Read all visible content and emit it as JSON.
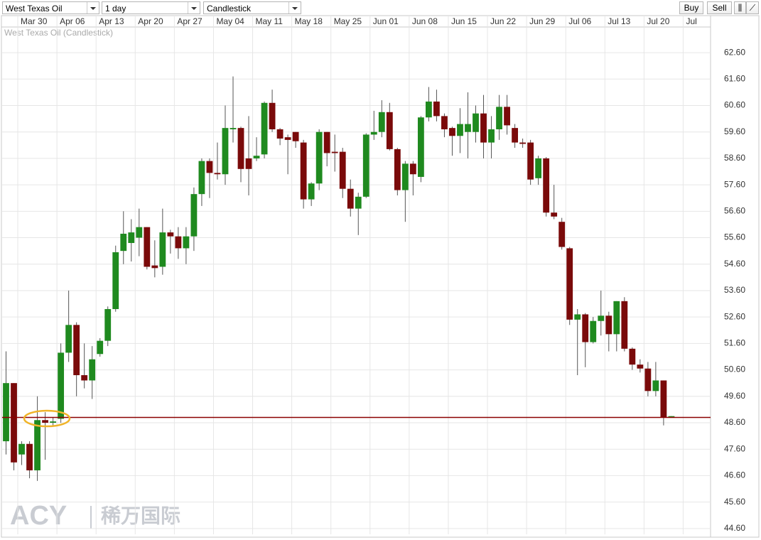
{
  "toolbar": {
    "instrument": "West Texas Oil",
    "interval": "1 day",
    "chart_style": "Candlestick",
    "buy": "Buy",
    "sell": "Sell"
  },
  "watermark": {
    "brand": "ACY",
    "name": "稀万国际"
  },
  "chart_data": {
    "type": "candlestick",
    "subtitle": "West Texas Oil (Candlestick)",
    "up_color": "#1f8a1f",
    "down_color": "#7a0a0a",
    "grid": true,
    "open": [
      47.9,
      50.1,
      47.4,
      47.8,
      46.8,
      48.7,
      48.6,
      48.75,
      51.25,
      52.3,
      50.4,
      50.2,
      51.2,
      51.7,
      52.9,
      55.1,
      55.4,
      55.6,
      56.0,
      54.55,
      54.5,
      55.8,
      55.65,
      55.2,
      55.65,
      57.25,
      58.5,
      58.05,
      58.0,
      59.7,
      59.75,
      58.6,
      58.6,
      58.75,
      60.7,
      59.7,
      59.4,
      59.6,
      59.2,
      57.05,
      57.65,
      59.6,
      58.85,
      58.85,
      57.45,
      56.7,
      57.15,
      59.5,
      59.6,
      60.35,
      58.95,
      57.4,
      58.4,
      57.9,
      60.15,
      60.75,
      60.2,
      59.75,
      59.45,
      59.6,
      59.6,
      60.3,
      59.2,
      59.7,
      60.55,
      59.75,
      59.2,
      59.2,
      57.85,
      58.6,
      56.55,
      56.2,
      55.2,
      52.5,
      52.7,
      51.65,
      52.45,
      52.65,
      51.95,
      53.2,
      51.4,
      50.8,
      50.65,
      49.8,
      50.2,
      48.8
    ],
    "high": [
      51.3,
      50.1,
      47.9,
      47.9,
      49.6,
      49.0,
      48.8,
      51.6,
      53.6,
      52.4,
      51.6,
      51.5,
      51.8,
      53.0,
      55.3,
      56.6,
      56.3,
      56.7,
      56.0,
      55.5,
      56.7,
      55.9,
      56.0,
      56.0,
      57.5,
      58.6,
      58.6,
      59.2,
      60.6,
      61.7,
      59.8,
      60.2,
      59.4,
      60.75,
      61.2,
      59.75,
      59.5,
      59.6,
      59.3,
      57.7,
      59.7,
      59.6,
      59.5,
      59.0,
      57.8,
      57.3,
      59.55,
      60.4,
      60.8,
      60.7,
      59.0,
      58.5,
      58.5,
      60.2,
      61.3,
      61.2,
      60.3,
      59.8,
      60.5,
      61.1,
      60.6,
      61.0,
      60.2,
      61.0,
      61.0,
      59.9,
      59.35,
      59.3,
      58.7,
      58.65,
      57.6,
      56.35,
      55.25,
      52.9,
      52.75,
      52.6,
      53.6,
      52.8,
      53.2,
      53.35,
      51.45,
      51.0,
      50.9,
      50.9,
      50.2,
      48.85
    ],
    "low": [
      47.4,
      46.8,
      47.0,
      46.5,
      46.4,
      47.2,
      48.5,
      48.6,
      50.9,
      49.6,
      49.9,
      49.5,
      51.1,
      51.5,
      52.8,
      54.6,
      54.7,
      54.9,
      54.4,
      54.1,
      54.2,
      55.0,
      54.8,
      54.6,
      55.1,
      56.8,
      57.1,
      57.8,
      57.6,
      59.2,
      57.7,
      57.2,
      58.5,
      58.6,
      59.6,
      59.1,
      58.0,
      59.0,
      56.7,
      56.8,
      57.4,
      58.3,
      58.1,
      57.1,
      56.4,
      55.7,
      57.1,
      59.3,
      59.4,
      58.9,
      57.2,
      56.2,
      57.2,
      57.7,
      60.0,
      60.0,
      59.4,
      58.7,
      58.8,
      58.6,
      59.2,
      58.6,
      58.6,
      59.3,
      59.5,
      59.0,
      59.0,
      57.6,
      57.6,
      56.4,
      56.3,
      55.15,
      52.3,
      50.4,
      50.7,
      51.6,
      51.9,
      51.3,
      51.3,
      51.3,
      50.6,
      50.5,
      49.6,
      49.6,
      48.5,
      48.8
    ],
    "close": [
      50.1,
      47.1,
      47.8,
      46.8,
      48.7,
      48.6,
      48.65,
      51.25,
      52.3,
      50.4,
      50.2,
      51.0,
      51.7,
      52.9,
      55.05,
      55.75,
      55.8,
      56.0,
      54.5,
      54.45,
      55.8,
      55.65,
      55.2,
      55.65,
      57.25,
      58.5,
      58.05,
      58.0,
      59.75,
      59.75,
      58.2,
      58.2,
      58.7,
      60.7,
      59.7,
      59.35,
      59.3,
      59.25,
      57.05,
      57.65,
      59.6,
      58.8,
      58.8,
      57.45,
      56.7,
      57.15,
      59.5,
      59.6,
      60.35,
      58.95,
      57.4,
      58.4,
      58.0,
      60.15,
      60.75,
      60.2,
      59.7,
      59.45,
      59.9,
      59.9,
      60.3,
      59.2,
      59.7,
      60.55,
      59.85,
      59.2,
      59.15,
      57.8,
      58.6,
      56.55,
      56.4,
      55.25,
      52.5,
      52.7,
      51.65,
      52.45,
      52.65,
      51.95,
      53.2,
      51.4,
      50.8,
      50.65,
      49.8,
      50.2,
      48.8,
      48.85
    ],
    "hline": {
      "value": 48.8,
      "color": "#8b0000"
    },
    "xlim": [
      -0.5,
      90
    ],
    "xticks": [
      {
        "value": 1.5,
        "label": "Mar 30"
      },
      {
        "value": 6.5,
        "label": "Apr 06"
      },
      {
        "value": 11.5,
        "label": "Apr 13"
      },
      {
        "value": 16.5,
        "label": "Apr 20"
      },
      {
        "value": 21.5,
        "label": "Apr 27"
      },
      {
        "value": 26.5,
        "label": "May 04"
      },
      {
        "value": 31.5,
        "label": "May 11"
      },
      {
        "value": 36.5,
        "label": "May 18"
      },
      {
        "value": 41.5,
        "label": "May 25"
      },
      {
        "value": 46.5,
        "label": "Jun 01"
      },
      {
        "value": 51.5,
        "label": "Jun 08"
      },
      {
        "value": 56.5,
        "label": "Jun 15"
      },
      {
        "value": 61.5,
        "label": "Jun 22"
      },
      {
        "value": 66.5,
        "label": "Jun 29"
      },
      {
        "value": 71.5,
        "label": "Jul 06"
      },
      {
        "value": 76.5,
        "label": "Jul 13"
      },
      {
        "value": 81.5,
        "label": "Jul 20"
      },
      {
        "value": 86.5,
        "label": "Jul"
      }
    ],
    "ylim": [
      44.38,
      63.57
    ],
    "yticks": [
      {
        "value": 44.6,
        "label": "44.60"
      },
      {
        "value": 45.6,
        "label": "45.60"
      },
      {
        "value": 46.6,
        "label": "46.60"
      },
      {
        "value": 47.6,
        "label": "47.60"
      },
      {
        "value": 48.6,
        "label": "48.60"
      },
      {
        "value": 49.6,
        "label": "49.60"
      },
      {
        "value": 50.6,
        "label": "50.60"
      },
      {
        "value": 51.6,
        "label": "51.60"
      },
      {
        "value": 52.6,
        "label": "52.60"
      },
      {
        "value": 53.6,
        "label": "53.60"
      },
      {
        "value": 54.6,
        "label": "54.60"
      },
      {
        "value": 55.6,
        "label": "55.60"
      },
      {
        "value": 56.6,
        "label": "56.60"
      },
      {
        "value": 57.6,
        "label": "57.60"
      },
      {
        "value": 58.6,
        "label": "58.60"
      },
      {
        "value": 59.6,
        "label": "59.60"
      },
      {
        "value": 60.6,
        "label": "60.60"
      },
      {
        "value": 61.6,
        "label": "61.60"
      },
      {
        "value": 62.6,
        "label": "62.60"
      }
    ]
  }
}
